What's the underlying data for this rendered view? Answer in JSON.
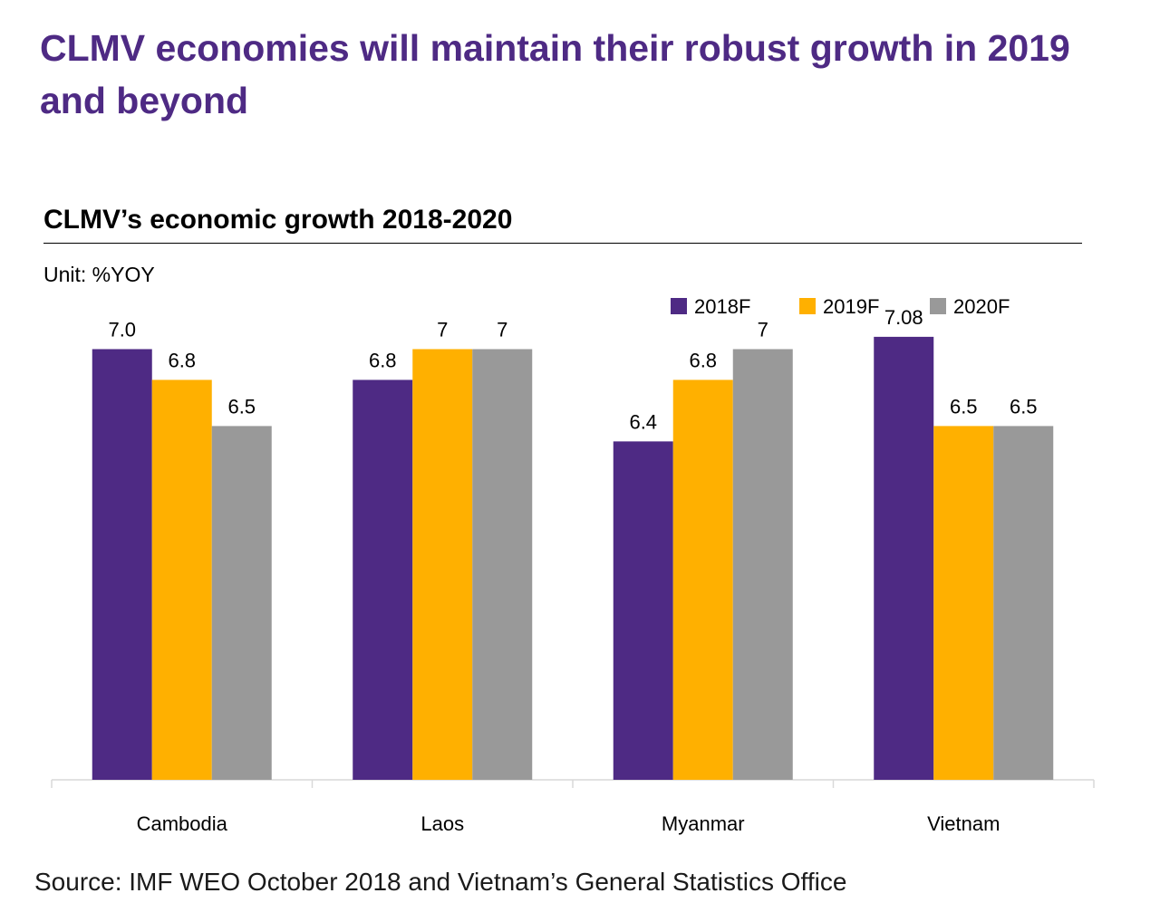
{
  "headline": "CLMV economies will maintain their robust growth in 2019 and beyond",
  "source": "Source: IMF WEO October 2018 and Vietnam’s General Statistics Office",
  "chart_data": {
    "type": "bar",
    "title": "CLMV’s economic growth 2018-2020",
    "unit_label": "Unit: %YOY",
    "categories": [
      "Cambodia",
      "Laos",
      "Myanmar",
      "Vietnam"
    ],
    "series": [
      {
        "name": "2018F",
        "color": "#4e2a84",
        "values": [
          7.0,
          6.8,
          6.4,
          7.08
        ],
        "labels": [
          "7.0",
          "6.8",
          "6.4",
          "7.08"
        ]
      },
      {
        "name": "2019F",
        "color": "#ffb000",
        "values": [
          6.8,
          7.0,
          6.8,
          6.5
        ],
        "labels": [
          "6.8",
          "7",
          "6.8",
          "6.5"
        ]
      },
      {
        "name": "2020F",
        "color": "#999999",
        "values": [
          6.5,
          7.0,
          7.0,
          6.5
        ],
        "labels": [
          "6.5",
          "7",
          "7",
          "6.5"
        ]
      }
    ],
    "ylim": [
      4.2,
      7.15
    ],
    "legend_position": "top-right",
    "grid": false,
    "axes_visible": {
      "y": false,
      "x": true
    }
  }
}
